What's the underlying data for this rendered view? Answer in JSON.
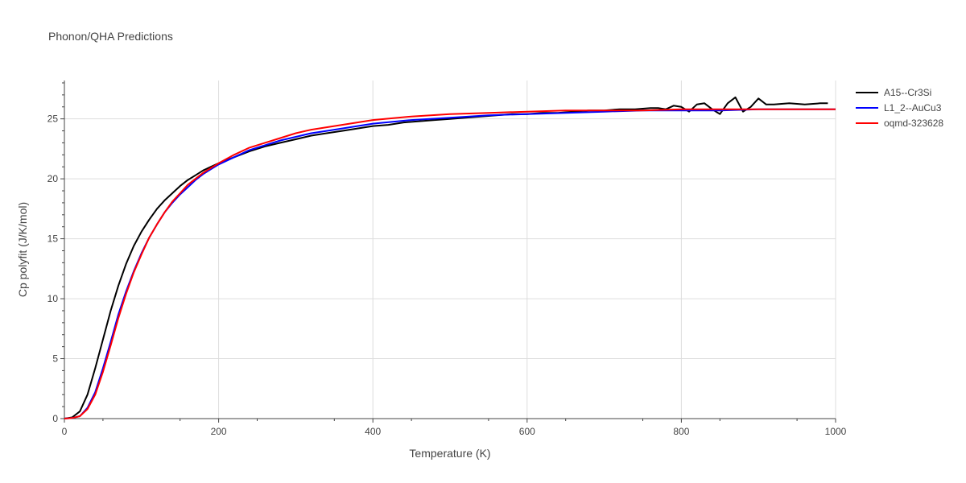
{
  "chart_data": {
    "type": "line",
    "title": "Phonon/QHA Predictions",
    "xlabel": "Temperature (K)",
    "ylabel": "Cp polyfit (J/K/mol)",
    "xlim": [
      0,
      1000
    ],
    "ylim": [
      0,
      28.2
    ],
    "xticks": [
      0,
      200,
      400,
      600,
      800,
      1000
    ],
    "yticks": [
      0,
      5,
      10,
      15,
      20,
      25
    ],
    "grid": true,
    "legend_position": "top-right",
    "series": [
      {
        "name": "A15--Cr3Si",
        "color": "#000000",
        "x": [
          0,
          10,
          20,
          30,
          40,
          50,
          60,
          70,
          80,
          90,
          100,
          110,
          120,
          130,
          140,
          150,
          160,
          170,
          180,
          190,
          200,
          220,
          240,
          260,
          280,
          300,
          320,
          340,
          360,
          380,
          400,
          420,
          440,
          460,
          480,
          500,
          520,
          540,
          560,
          580,
          600,
          620,
          640,
          660,
          680,
          700,
          720,
          740,
          760,
          770,
          780,
          790,
          800,
          810,
          820,
          830,
          840,
          850,
          860,
          870,
          880,
          890,
          900,
          910,
          920,
          940,
          960,
          980,
          990
        ],
        "y": [
          0,
          0.1,
          0.6,
          2.0,
          4.2,
          6.6,
          9.0,
          11.1,
          12.9,
          14.4,
          15.6,
          16.6,
          17.5,
          18.2,
          18.8,
          19.4,
          19.9,
          20.3,
          20.7,
          21.0,
          21.3,
          21.8,
          22.3,
          22.7,
          23.0,
          23.3,
          23.6,
          23.8,
          24.0,
          24.2,
          24.4,
          24.5,
          24.7,
          24.8,
          24.9,
          25.0,
          25.1,
          25.2,
          25.3,
          25.4,
          25.4,
          25.5,
          25.5,
          25.6,
          25.7,
          25.7,
          25.8,
          25.8,
          25.9,
          25.9,
          25.8,
          26.1,
          26.0,
          25.6,
          26.2,
          26.3,
          25.8,
          25.4,
          26.3,
          26.8,
          25.6,
          26.0,
          26.7,
          26.2,
          26.2,
          26.3,
          26.2,
          26.3,
          26.3
        ]
      },
      {
        "name": "L1_2--AuCu3",
        "color": "#0000ff",
        "x": [
          0,
          10,
          20,
          30,
          40,
          50,
          60,
          70,
          80,
          90,
          100,
          110,
          120,
          130,
          140,
          150,
          160,
          170,
          180,
          190,
          200,
          220,
          240,
          260,
          280,
          300,
          320,
          340,
          360,
          380,
          400,
          450,
          500,
          550,
          600,
          650,
          700,
          750,
          800,
          850,
          900,
          950,
          1000
        ],
        "y": [
          0,
          0.05,
          0.2,
          0.9,
          2.2,
          4.2,
          6.4,
          8.7,
          10.6,
          12.3,
          13.8,
          15.1,
          16.2,
          17.2,
          18.0,
          18.7,
          19.3,
          19.9,
          20.4,
          20.8,
          21.2,
          21.8,
          22.4,
          22.8,
          23.2,
          23.5,
          23.8,
          24.0,
          24.2,
          24.4,
          24.6,
          24.9,
          25.1,
          25.3,
          25.4,
          25.5,
          25.6,
          25.7,
          25.7,
          25.7,
          25.8,
          25.8,
          25.8
        ]
      },
      {
        "name": "oqmd-323628",
        "color": "#ff0000",
        "x": [
          0,
          10,
          20,
          30,
          40,
          50,
          60,
          70,
          80,
          90,
          100,
          110,
          120,
          130,
          140,
          150,
          160,
          170,
          180,
          190,
          200,
          220,
          240,
          260,
          280,
          300,
          320,
          340,
          360,
          380,
          400,
          450,
          500,
          550,
          600,
          650,
          700,
          750,
          800,
          850,
          900,
          950,
          1000
        ],
        "y": [
          0,
          0.05,
          0.2,
          0.8,
          2.0,
          3.9,
          6.1,
          8.4,
          10.4,
          12.2,
          13.7,
          15.1,
          16.2,
          17.2,
          18.1,
          18.8,
          19.5,
          20.0,
          20.5,
          20.9,
          21.3,
          22.0,
          22.6,
          23.0,
          23.4,
          23.8,
          24.1,
          24.3,
          24.5,
          24.7,
          24.9,
          25.2,
          25.4,
          25.5,
          25.6,
          25.7,
          25.7,
          25.7,
          25.8,
          25.8,
          25.8,
          25.8,
          25.8
        ]
      }
    ]
  }
}
